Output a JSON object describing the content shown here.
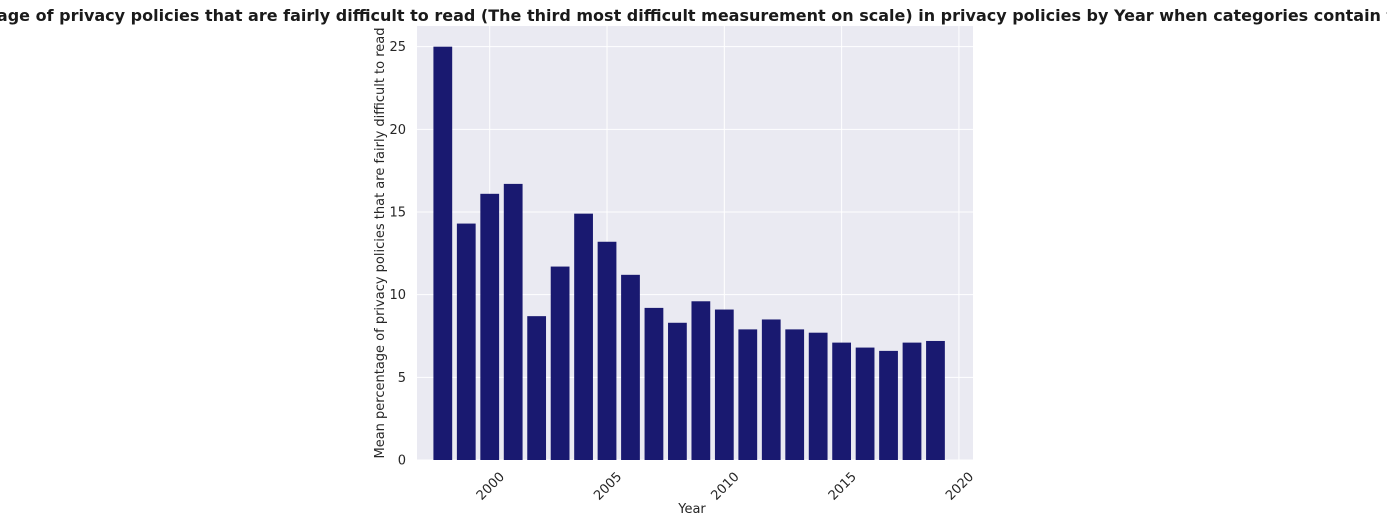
{
  "chart_data": {
    "type": "bar",
    "title": "Mean percentage of privacy policies that are fairly difficult to read (The third most difficult measurement on scale) in privacy policies by Year when categories contain tech or media",
    "xlabel": "Year",
    "ylabel": "Mean percentage of privacy policies that are fairly difficult to read",
    "x": [
      1998,
      1999,
      2000,
      2001,
      2002,
      2003,
      2004,
      2005,
      2006,
      2007,
      2008,
      2009,
      2010,
      2011,
      2012,
      2013,
      2014,
      2015,
      2016,
      2017,
      2018,
      2019
    ],
    "values": [
      25.0,
      14.3,
      16.1,
      16.7,
      8.7,
      11.7,
      14.9,
      13.2,
      11.2,
      9.2,
      8.3,
      9.6,
      9.1,
      7.9,
      8.5,
      7.9,
      7.7,
      7.1,
      6.8,
      6.6,
      7.1,
      7.2
    ],
    "xlim": [
      1996.9,
      2020.6
    ],
    "ylim": [
      0,
      26.25
    ],
    "xticks": [
      2000,
      2005,
      2010,
      2015,
      2020
    ],
    "xtick_labels": [
      "2000",
      "2005",
      "2010",
      "2015",
      "2020"
    ],
    "yticks": [
      0,
      5,
      10,
      15,
      20,
      25
    ],
    "ytick_labels": [
      "0",
      "5",
      "10",
      "15",
      "20",
      "25"
    ],
    "grid": true,
    "bar_color": "#191970",
    "background_color": "#eaeaf2",
    "grid_color": "#ffffff"
  }
}
